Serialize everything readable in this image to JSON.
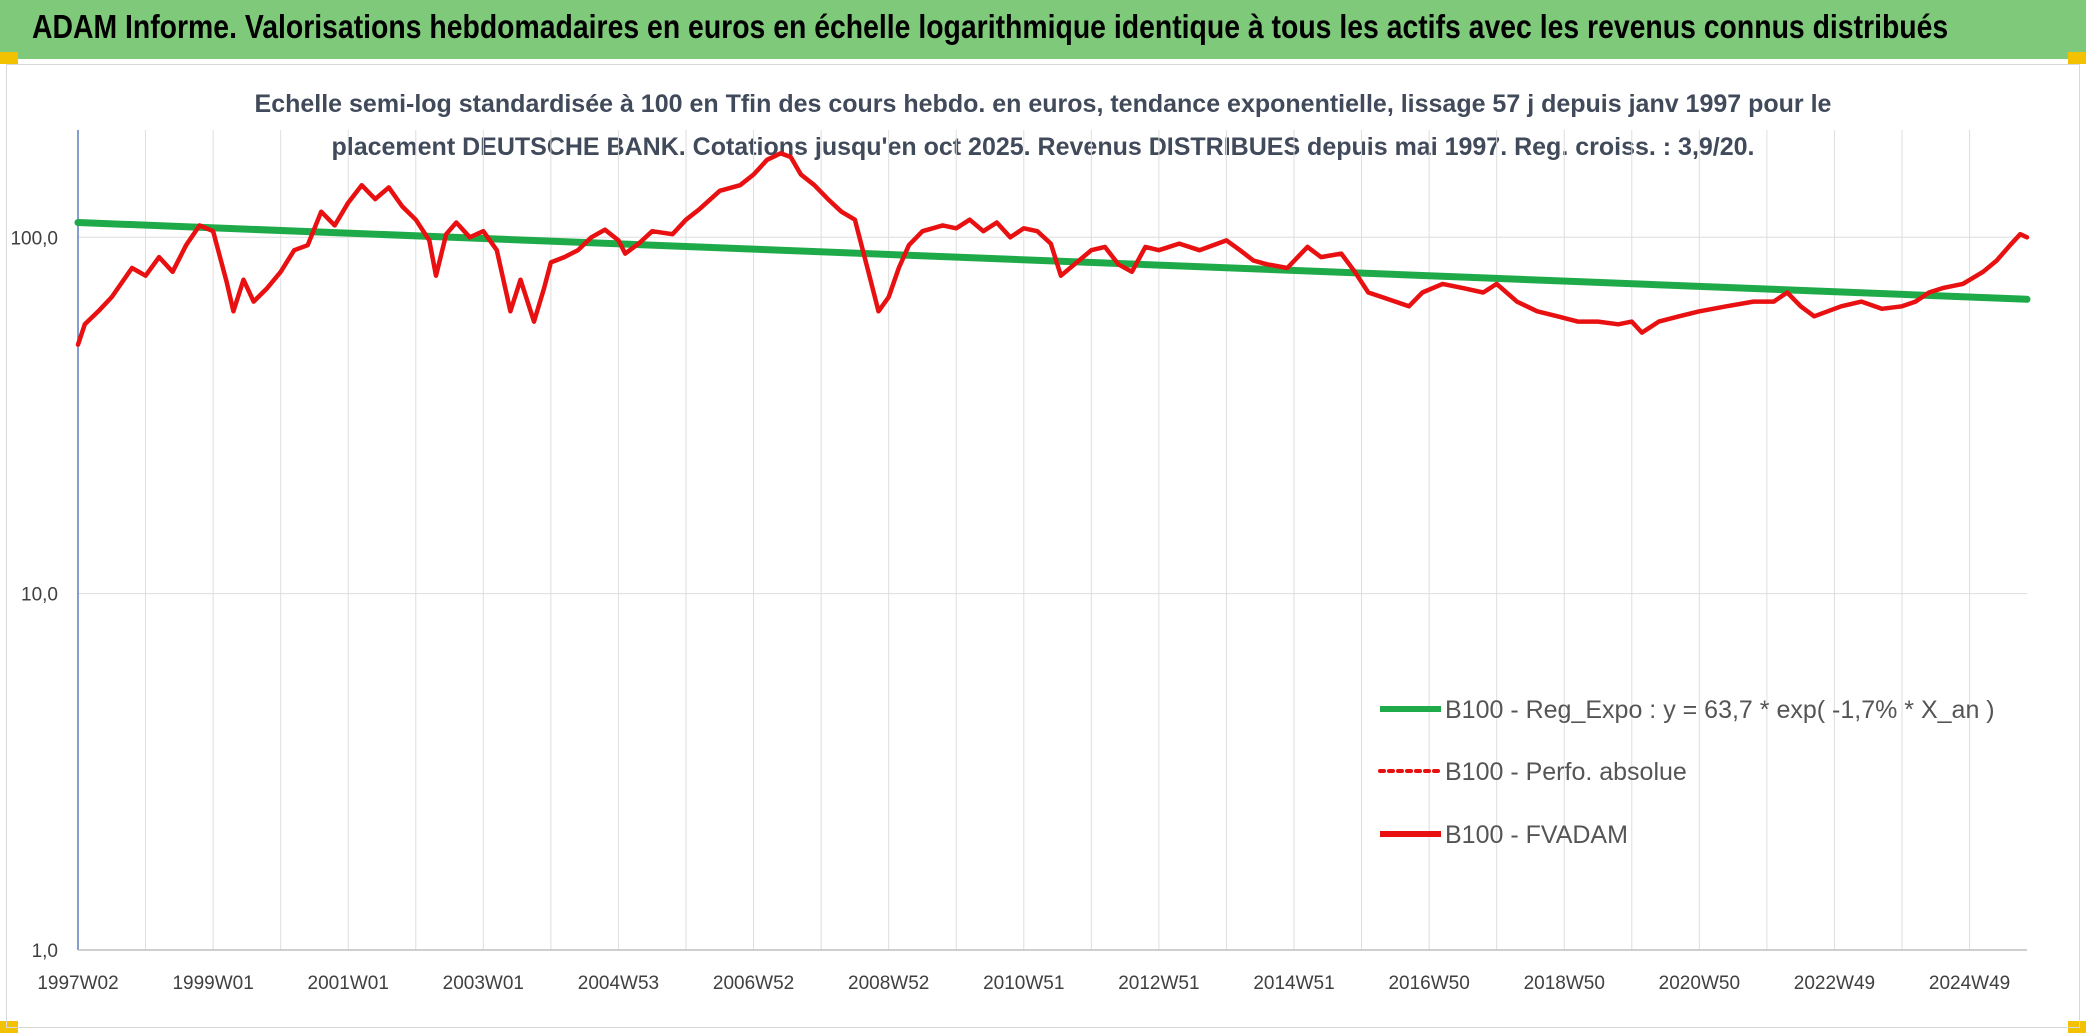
{
  "header": {
    "title": "ADAM Informe. Valorisations hebdomadaires en euros en échelle logarithmique identique à tous les actifs avec les revenus connus distribués"
  },
  "chart_data": {
    "type": "line",
    "subtitle_line1": "Echelle semi-log standardisée à 100 en Tfin des cours hebdo. en euros, tendance exponentielle, lissage 57 j depuis janv 1997 pour le",
    "subtitle_line2": "placement DEUTSCHE BANK. Cotations jusqu'en oct 2025. Revenus DISTRIBUES depuis mai 1997. Reg. croiss. : 3,9/20.",
    "y_scale": "log",
    "ylim": [
      1,
      200
    ],
    "xlim": [
      1997.0,
      2025.85
    ],
    "y_ticks": [
      {
        "value": 1,
        "label": "1,0"
      },
      {
        "value": 10,
        "label": "10,0"
      },
      {
        "value": 100,
        "label": "100,0"
      }
    ],
    "x_ticks": [
      {
        "value": 1997.0,
        "label": "1997W02"
      },
      {
        "value": 1999.0,
        "label": "1999W01"
      },
      {
        "value": 2001.0,
        "label": "2001W01"
      },
      {
        "value": 2003.0,
        "label": "2003W01"
      },
      {
        "value": 2005.0,
        "label": "2004W53"
      },
      {
        "value": 2007.0,
        "label": "2006W52"
      },
      {
        "value": 2009.0,
        "label": "2008W52"
      },
      {
        "value": 2011.0,
        "label": "2010W51"
      },
      {
        "value": 2013.0,
        "label": "2012W51"
      },
      {
        "value": 2015.0,
        "label": "2014W51"
      },
      {
        "value": 2017.0,
        "label": "2016W50"
      },
      {
        "value": 2019.0,
        "label": "2018W50"
      },
      {
        "value": 2021.0,
        "label": "2020W50"
      },
      {
        "value": 2023.0,
        "label": "2022W49"
      },
      {
        "value": 2025.0,
        "label": "2024W49"
      }
    ],
    "vertical_grid": true,
    "legend_position": "bottom-right",
    "series": [
      {
        "name": "B100 - Reg_Expo : y = 63,7 * exp( -1,7% *  X_an )",
        "color": "#1faa4a",
        "style": "solid",
        "points": [
          [
            1997.0,
            110
          ],
          [
            2025.85,
            67
          ]
        ]
      },
      {
        "name": "B100 - Perfo. absolue",
        "color": "#e81010",
        "style": "dotted",
        "points": []
      },
      {
        "name": "B100 - FVADAM",
        "color": "#e81010",
        "style": "solid",
        "points": [
          [
            1997.0,
            50
          ],
          [
            1997.1,
            57
          ],
          [
            1997.3,
            62
          ],
          [
            1997.5,
            68
          ],
          [
            1997.8,
            82
          ],
          [
            1998.0,
            78
          ],
          [
            1998.2,
            88
          ],
          [
            1998.4,
            80
          ],
          [
            1998.6,
            95
          ],
          [
            1998.8,
            108
          ],
          [
            1999.0,
            104
          ],
          [
            1999.2,
            75
          ],
          [
            1999.3,
            62
          ],
          [
            1999.45,
            76
          ],
          [
            1999.6,
            66
          ],
          [
            1999.8,
            72
          ],
          [
            2000.0,
            80
          ],
          [
            2000.2,
            92
          ],
          [
            2000.4,
            95
          ],
          [
            2000.6,
            118
          ],
          [
            2000.8,
            108
          ],
          [
            2001.0,
            125
          ],
          [
            2001.2,
            140
          ],
          [
            2001.4,
            128
          ],
          [
            2001.6,
            138
          ],
          [
            2001.8,
            122
          ],
          [
            2002.0,
            112
          ],
          [
            2002.2,
            98
          ],
          [
            2002.3,
            78
          ],
          [
            2002.45,
            102
          ],
          [
            2002.6,
            110
          ],
          [
            2002.8,
            100
          ],
          [
            2003.0,
            104
          ],
          [
            2003.2,
            92
          ],
          [
            2003.4,
            62
          ],
          [
            2003.55,
            76
          ],
          [
            2003.75,
            58
          ],
          [
            2003.9,
            72
          ],
          [
            2004.0,
            85
          ],
          [
            2004.2,
            88
          ],
          [
            2004.4,
            92
          ],
          [
            2004.6,
            100
          ],
          [
            2004.8,
            105
          ],
          [
            2005.0,
            98
          ],
          [
            2005.1,
            90
          ],
          [
            2005.3,
            96
          ],
          [
            2005.5,
            104
          ],
          [
            2005.8,
            102
          ],
          [
            2006.0,
            112
          ],
          [
            2006.2,
            120
          ],
          [
            2006.5,
            135
          ],
          [
            2006.8,
            140
          ],
          [
            2007.0,
            150
          ],
          [
            2007.2,
            165
          ],
          [
            2007.4,
            172
          ],
          [
            2007.55,
            168
          ],
          [
            2007.7,
            150
          ],
          [
            2007.9,
            140
          ],
          [
            2008.1,
            128
          ],
          [
            2008.3,
            118
          ],
          [
            2008.5,
            112
          ],
          [
            2008.7,
            80
          ],
          [
            2008.85,
            62
          ],
          [
            2009.0,
            68
          ],
          [
            2009.15,
            82
          ],
          [
            2009.3,
            95
          ],
          [
            2009.5,
            104
          ],
          [
            2009.8,
            108
          ],
          [
            2010.0,
            106
          ],
          [
            2010.2,
            112
          ],
          [
            2010.4,
            104
          ],
          [
            2010.6,
            110
          ],
          [
            2010.8,
            100
          ],
          [
            2011.0,
            106
          ],
          [
            2011.2,
            104
          ],
          [
            2011.4,
            96
          ],
          [
            2011.55,
            78
          ],
          [
            2011.75,
            84
          ],
          [
            2012.0,
            92
          ],
          [
            2012.2,
            94
          ],
          [
            2012.4,
            84
          ],
          [
            2012.6,
            80
          ],
          [
            2012.8,
            94
          ],
          [
            2013.0,
            92
          ],
          [
            2013.3,
            96
          ],
          [
            2013.6,
            92
          ],
          [
            2014.0,
            98
          ],
          [
            2014.2,
            92
          ],
          [
            2014.4,
            86
          ],
          [
            2014.6,
            84
          ],
          [
            2014.9,
            82
          ],
          [
            2015.2,
            94
          ],
          [
            2015.4,
            88
          ],
          [
            2015.7,
            90
          ],
          [
            2015.9,
            80
          ],
          [
            2016.1,
            70
          ],
          [
            2016.3,
            68
          ],
          [
            2016.5,
            66
          ],
          [
            2016.7,
            64
          ],
          [
            2016.9,
            70
          ],
          [
            2017.2,
            74
          ],
          [
            2017.5,
            72
          ],
          [
            2017.8,
            70
          ],
          [
            2018.0,
            74
          ],
          [
            2018.3,
            66
          ],
          [
            2018.6,
            62
          ],
          [
            2018.9,
            60
          ],
          [
            2019.2,
            58
          ],
          [
            2019.5,
            58
          ],
          [
            2019.8,
            57
          ],
          [
            2020.0,
            58
          ],
          [
            2020.15,
            54
          ],
          [
            2020.4,
            58
          ],
          [
            2020.7,
            60
          ],
          [
            2021.0,
            62
          ],
          [
            2021.4,
            64
          ],
          [
            2021.8,
            66
          ],
          [
            2022.1,
            66
          ],
          [
            2022.3,
            70
          ],
          [
            2022.5,
            64
          ],
          [
            2022.7,
            60
          ],
          [
            2022.9,
            62
          ],
          [
            2023.1,
            64
          ],
          [
            2023.4,
            66
          ],
          [
            2023.7,
            63
          ],
          [
            2024.0,
            64
          ],
          [
            2024.2,
            66
          ],
          [
            2024.4,
            70
          ],
          [
            2024.6,
            72
          ],
          [
            2024.9,
            74
          ],
          [
            2025.2,
            80
          ],
          [
            2025.4,
            86
          ],
          [
            2025.6,
            95
          ],
          [
            2025.75,
            102
          ],
          [
            2025.85,
            100
          ]
        ]
      }
    ]
  }
}
